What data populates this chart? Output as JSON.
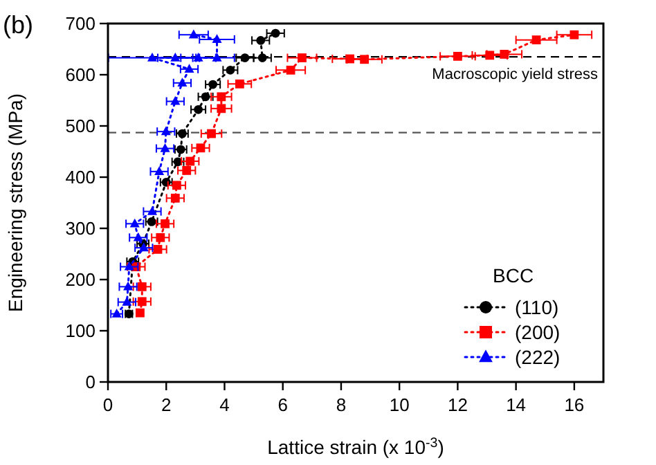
{
  "chart_data": {
    "type": "line",
    "xlabel": "Lattice strain (x 10$^{-3}$)",
    "ylabel": "Engineering stress (MPa)",
    "legend_title": "BCC",
    "legend": "bottom right",
    "line_style": "dotted",
    "grid": false,
    "xlim": [
      0,
      17
    ],
    "xticks": [
      0,
      2,
      4,
      6,
      8,
      10,
      12,
      14,
      16
    ],
    "ylim": [
      0,
      700
    ],
    "yticks": [
      0,
      100,
      200,
      300,
      400,
      500,
      600,
      700
    ],
    "ref_lines": [
      {
        "axis": "y",
        "value": 635,
        "label": "Macroscopic yield stress",
        "line_style": "dashed",
        "color": "#000000"
      },
      {
        "axis": "y",
        "value": 487,
        "line_style": "dashed",
        "color": "#555555"
      }
    ],
    "annotations": [
      "(b)"
    ],
    "series": [
      {
        "name": "(110)",
        "color": "#000000",
        "marker": "circle",
        "x": [
          0.72,
          0.85,
          1.2,
          1.5,
          2.0,
          2.4,
          2.5,
          2.55,
          3.1,
          3.35,
          3.6,
          4.2,
          4.7,
          5.3,
          5.24,
          5.75
        ],
        "values": [
          133,
          235,
          270,
          313,
          390,
          430,
          454,
          485,
          532,
          557,
          581,
          609,
          633,
          633,
          667,
          681
        ],
        "xerrors": [
          0.12,
          0.2,
          0.2,
          0.2,
          0.2,
          0.2,
          0.2,
          0.2,
          0.25,
          0.25,
          0.25,
          0.25,
          0.3,
          0.3,
          0.3,
          0.3
        ]
      },
      {
        "name": "(200)",
        "color": "#ff0000",
        "marker": "square",
        "x": [
          1.1,
          1.17,
          1.17,
          0.97,
          1.71,
          1.8,
          1.96,
          2.31,
          2.36,
          2.7,
          2.82,
          3.18,
          3.55,
          3.89,
          3.89,
          4.52,
          6.27,
          6.66,
          8.3,
          8.8,
          12.0,
          13.1,
          13.6,
          14.7,
          16.0
        ],
        "values": [
          135,
          157,
          186,
          225,
          259,
          282,
          309,
          359,
          384,
          413,
          431,
          457,
          485,
          534,
          557,
          582,
          609,
          633,
          631,
          630,
          636,
          638,
          640,
          668,
          678
        ],
        "xerrors": [
          0.12,
          0.3,
          0.3,
          0.3,
          0.3,
          0.3,
          0.3,
          0.3,
          0.3,
          0.3,
          0.3,
          0.3,
          0.35,
          0.35,
          0.35,
          0.4,
          0.5,
          0.5,
          0.6,
          0.6,
          0.6,
          0.6,
          0.6,
          0.7,
          0.6
        ]
      },
      {
        "name": "(222)",
        "color": "#0000ff",
        "marker": "triangle",
        "x": [
          0.3,
          0.65,
          0.69,
          0.73,
          1.23,
          1.04,
          0.92,
          1.52,
          1.76,
          1.96,
          1.99,
          2.31,
          2.55,
          2.79,
          1.52,
          2.31,
          3.1,
          3.74,
          3.74,
          2.94
        ],
        "values": [
          133,
          156,
          186,
          225,
          262,
          282,
          309,
          333,
          411,
          456,
          489,
          548,
          584,
          611,
          633,
          633,
          633,
          633,
          669,
          678
        ],
        "xerrors": [
          0.2,
          0.3,
          0.3,
          0.3,
          0.3,
          0.3,
          0.3,
          0.3,
          0.3,
          0.3,
          0.3,
          0.3,
          0.3,
          0.3,
          1.5,
          0.6,
          0.6,
          0.6,
          0.6,
          0.5
        ]
      }
    ]
  }
}
